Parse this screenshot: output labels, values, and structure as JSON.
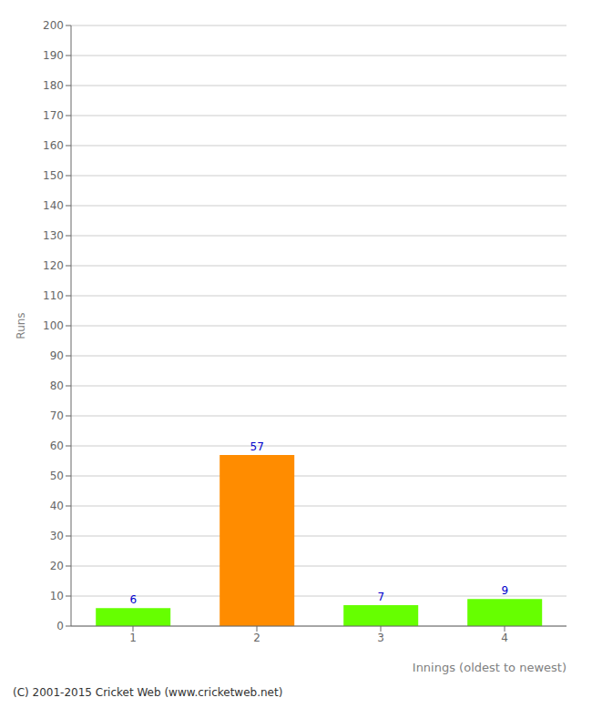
{
  "chart_data": {
    "type": "bar",
    "categories": [
      "1",
      "2",
      "3",
      "4"
    ],
    "values": [
      6,
      57,
      7,
      9
    ],
    "colors": [
      "#66ff00",
      "#ff8c00",
      "#66ff00",
      "#66ff00"
    ],
    "xlabel": "Innings (oldest to newest)",
    "ylabel": "Runs",
    "ylim": [
      0,
      200
    ],
    "yticks": [
      0,
      10,
      20,
      30,
      40,
      50,
      60,
      70,
      80,
      90,
      100,
      110,
      120,
      130,
      140,
      150,
      160,
      170,
      180,
      190,
      200
    ],
    "grid": true,
    "data_labels": true,
    "annotations": [
      "(C) 2001-2015 Cricket Web (www.cricketweb.net)"
    ]
  }
}
